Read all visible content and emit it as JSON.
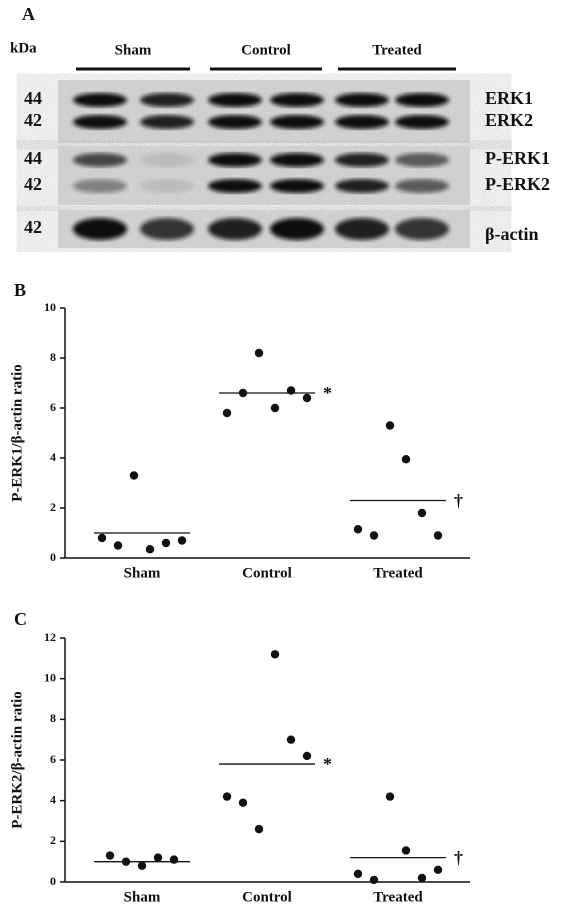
{
  "blot": {
    "label": "A",
    "unit": "kDa",
    "groups": [
      "Sham",
      "Control",
      "Treated"
    ],
    "rows": [
      {
        "markers": [
          "44",
          "42"
        ],
        "bands": [
          "ERK1",
          "ERK2"
        ]
      },
      {
        "markers": [
          "44",
          "42"
        ],
        "bands": [
          "P-ERK1",
          "P-ERK2"
        ]
      },
      {
        "markers": [
          "42"
        ],
        "bands": [
          "β-actin"
        ]
      }
    ]
  },
  "chart_data": [
    {
      "type": "strip",
      "label": "B",
      "y_label": "P-ERK1/β-actin ratio",
      "categories": [
        "Sham",
        "Control",
        "Treated"
      ],
      "points": [
        [
          0.8,
          0.5,
          3.3,
          0.35,
          0.6,
          0.7
        ],
        [
          5.8,
          6.6,
          8.2,
          6.0,
          6.7,
          6.4
        ],
        [
          1.15,
          0.9,
          5.3,
          3.95,
          1.8,
          0.9
        ]
      ],
      "means": [
        1.0,
        6.6,
        2.3
      ],
      "mean_labels": [
        null,
        "*",
        "†"
      ],
      "color": "#111111",
      "ylim": [
        0,
        10
      ],
      "yticks": [
        0,
        2,
        4,
        6,
        8,
        10
      ]
    },
    {
      "type": "strip",
      "label": "C",
      "y_label": "P-ERK2/β-actin ratio",
      "categories": [
        "Sham",
        "Control",
        "Treated"
      ],
      "points": [
        [
          1.3,
          1.0,
          0.8,
          1.2,
          1.1
        ],
        [
          4.2,
          3.9,
          2.6,
          11.2,
          7.0,
          6.2
        ],
        [
          0.4,
          0.1,
          4.2,
          1.55,
          0.2,
          0.6
        ]
      ],
      "means": [
        1.0,
        5.8,
        1.2
      ],
      "mean_labels": [
        null,
        "*",
        "†"
      ],
      "color": "#111111",
      "ylim": [
        0,
        12
      ],
      "yticks": [
        0,
        2,
        4,
        6,
        8,
        10,
        12
      ]
    }
  ]
}
